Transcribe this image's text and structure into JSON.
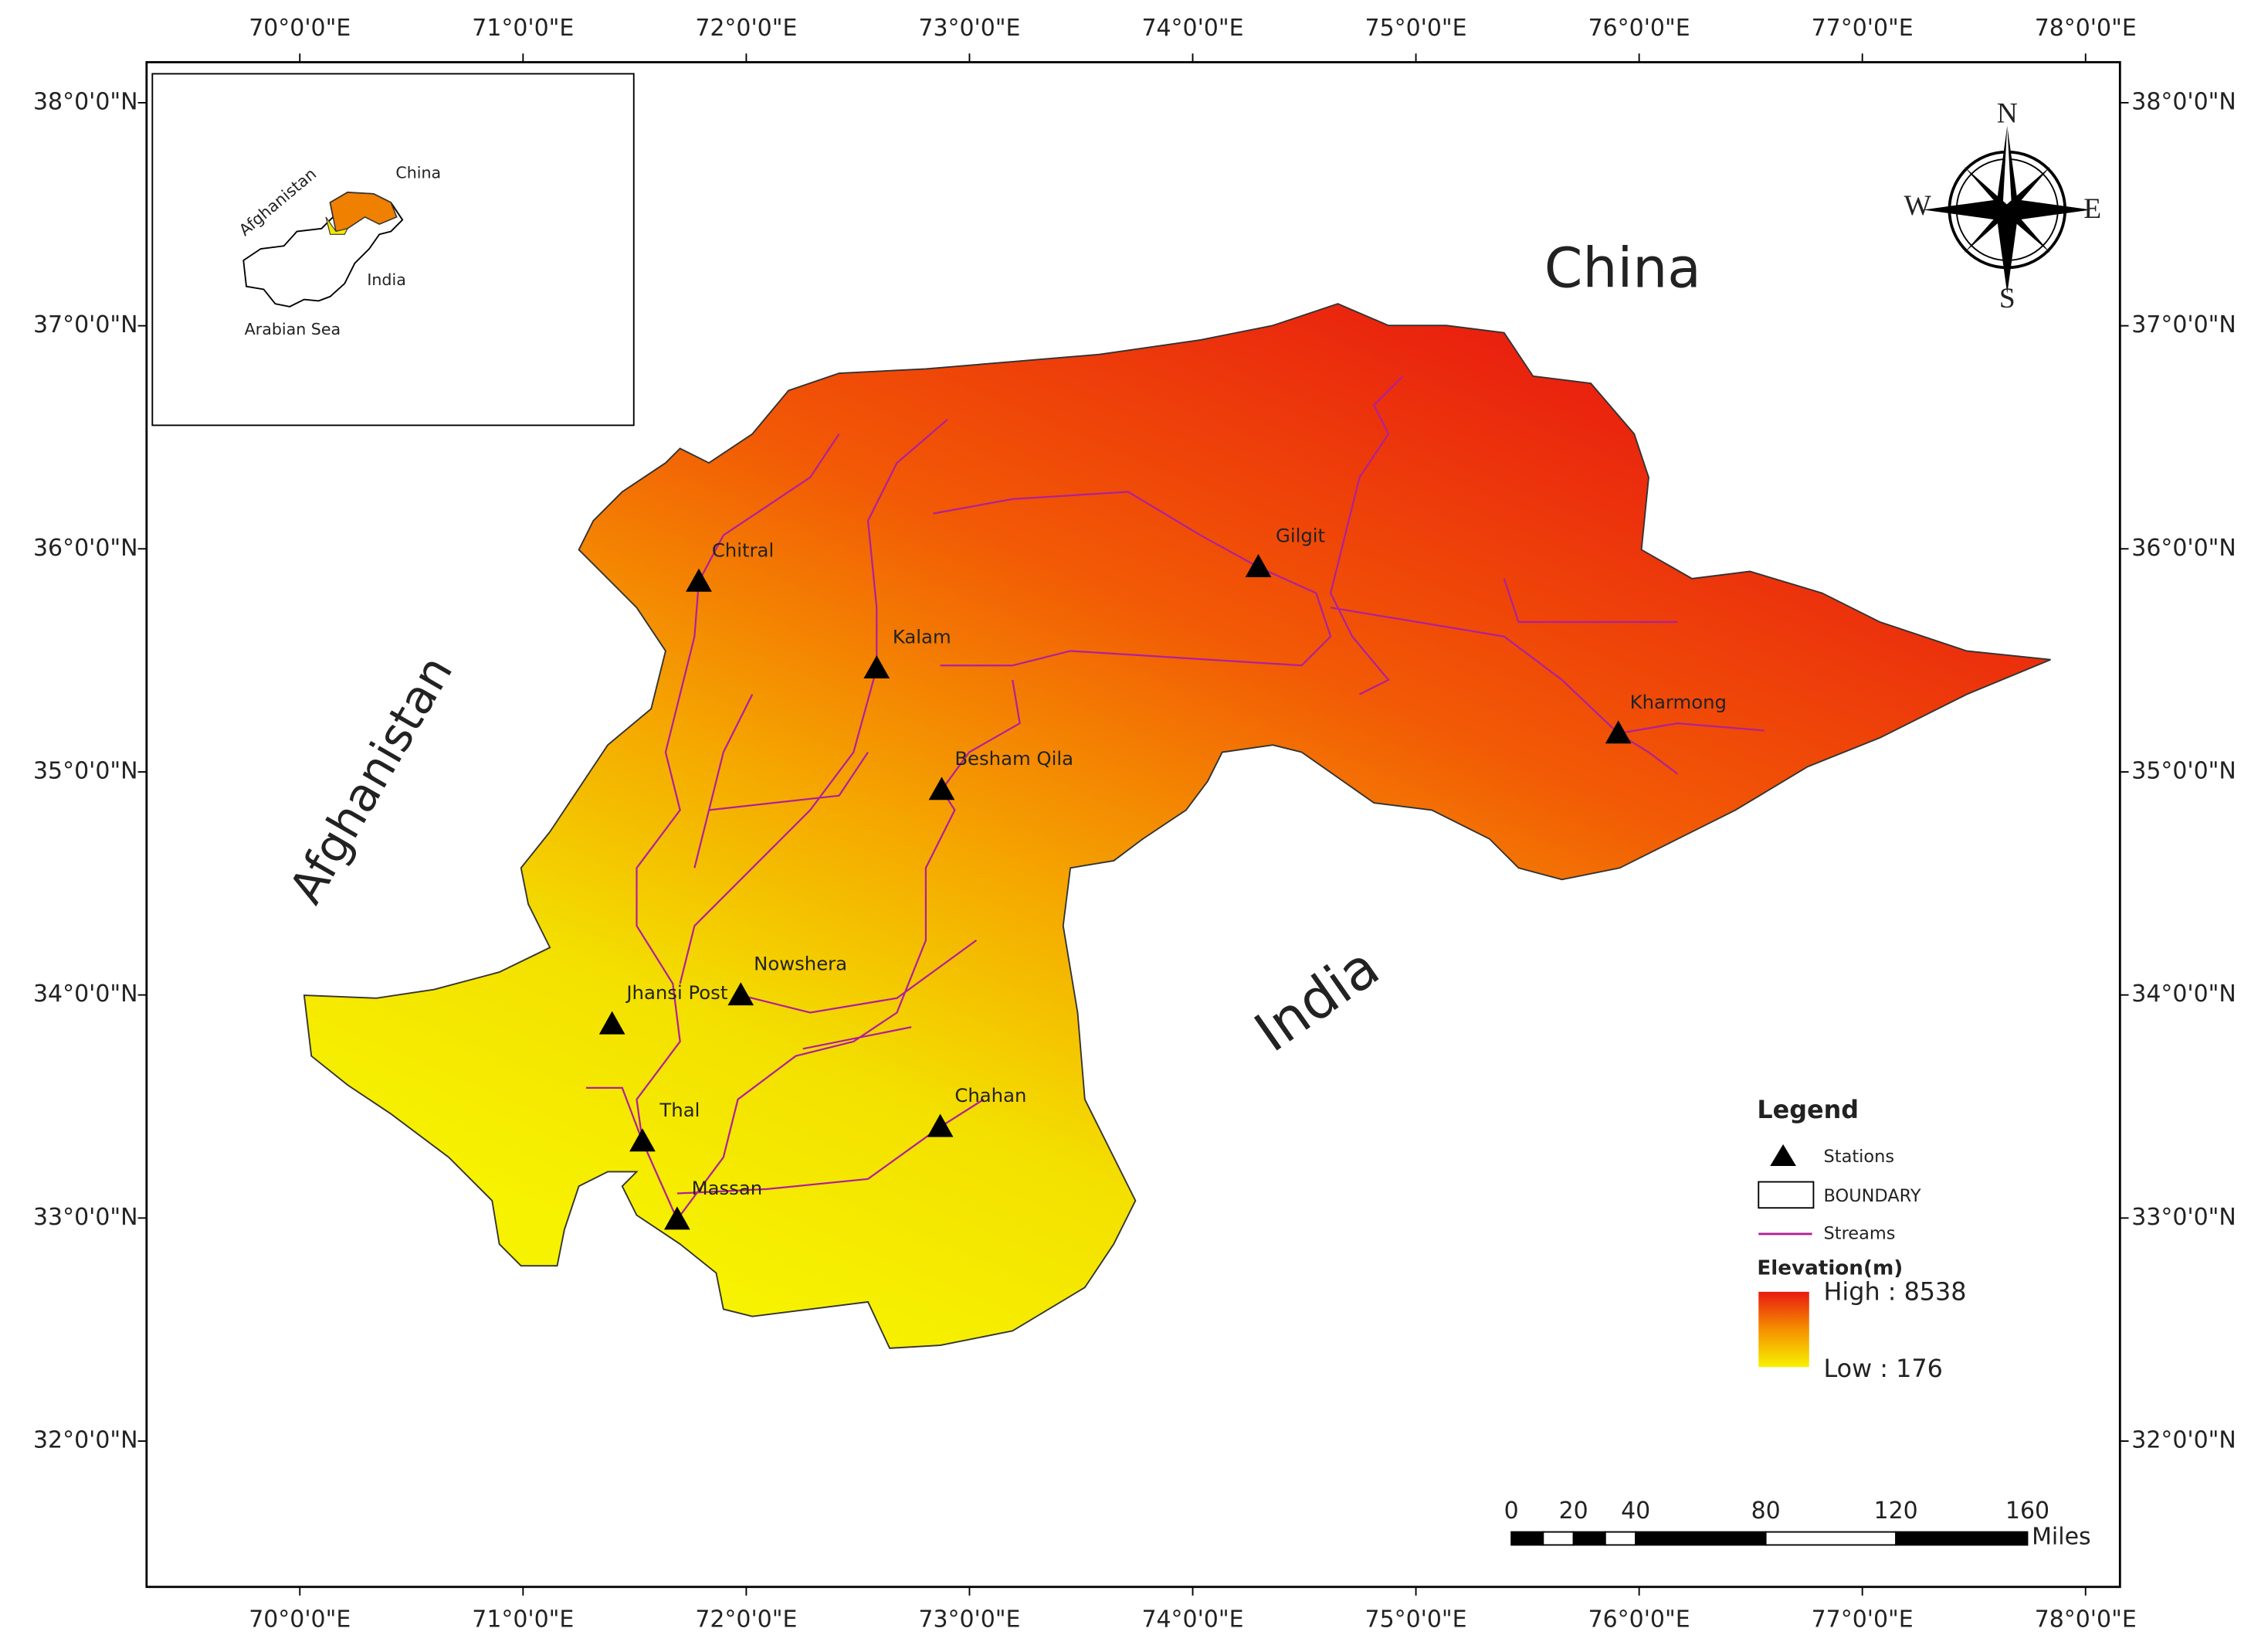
{
  "map": {
    "lon_labels": [
      "70°0'0\"E",
      "71°0'0\"E",
      "72°0'0\"E",
      "73°0'0\"E",
      "74°0'0\"E",
      "75°0'0\"E",
      "76°0'0\"E",
      "77°0'0\"E",
      "78°0'0\"E"
    ],
    "lat_labels": [
      "38°0'0\"N",
      "37°0'0\"N",
      "36°0'0\"N",
      "35°0'0\"N",
      "34°0'0\"N",
      "33°0'0\"N",
      "32°0'0\"N"
    ],
    "region_labels": [
      "China",
      "India",
      "Afghanistan"
    ],
    "stations": [
      "Chitral",
      "Gilgit",
      "Kalam",
      "Kharmong",
      "Besham Qila",
      "Nowshera",
      "Jhansi Post",
      "Thal",
      "Chahan",
      "Massan"
    ],
    "compass": {
      "n": "N",
      "s": "S",
      "e": "E",
      "w": "W"
    }
  },
  "inset": {
    "labels": [
      "Afghanistan",
      "China",
      "India",
      "Arabian Sea"
    ]
  },
  "legend": {
    "title": "Legend",
    "items": [
      "Stations",
      "BOUNDARY",
      "Streams"
    ],
    "elevation_title": "Elevation(m)",
    "high": "High : 8538",
    "low": "Low : 176"
  },
  "scale_bar": {
    "ticks": [
      0,
      20,
      40,
      80,
      120,
      160
    ],
    "unit": "Miles"
  }
}
